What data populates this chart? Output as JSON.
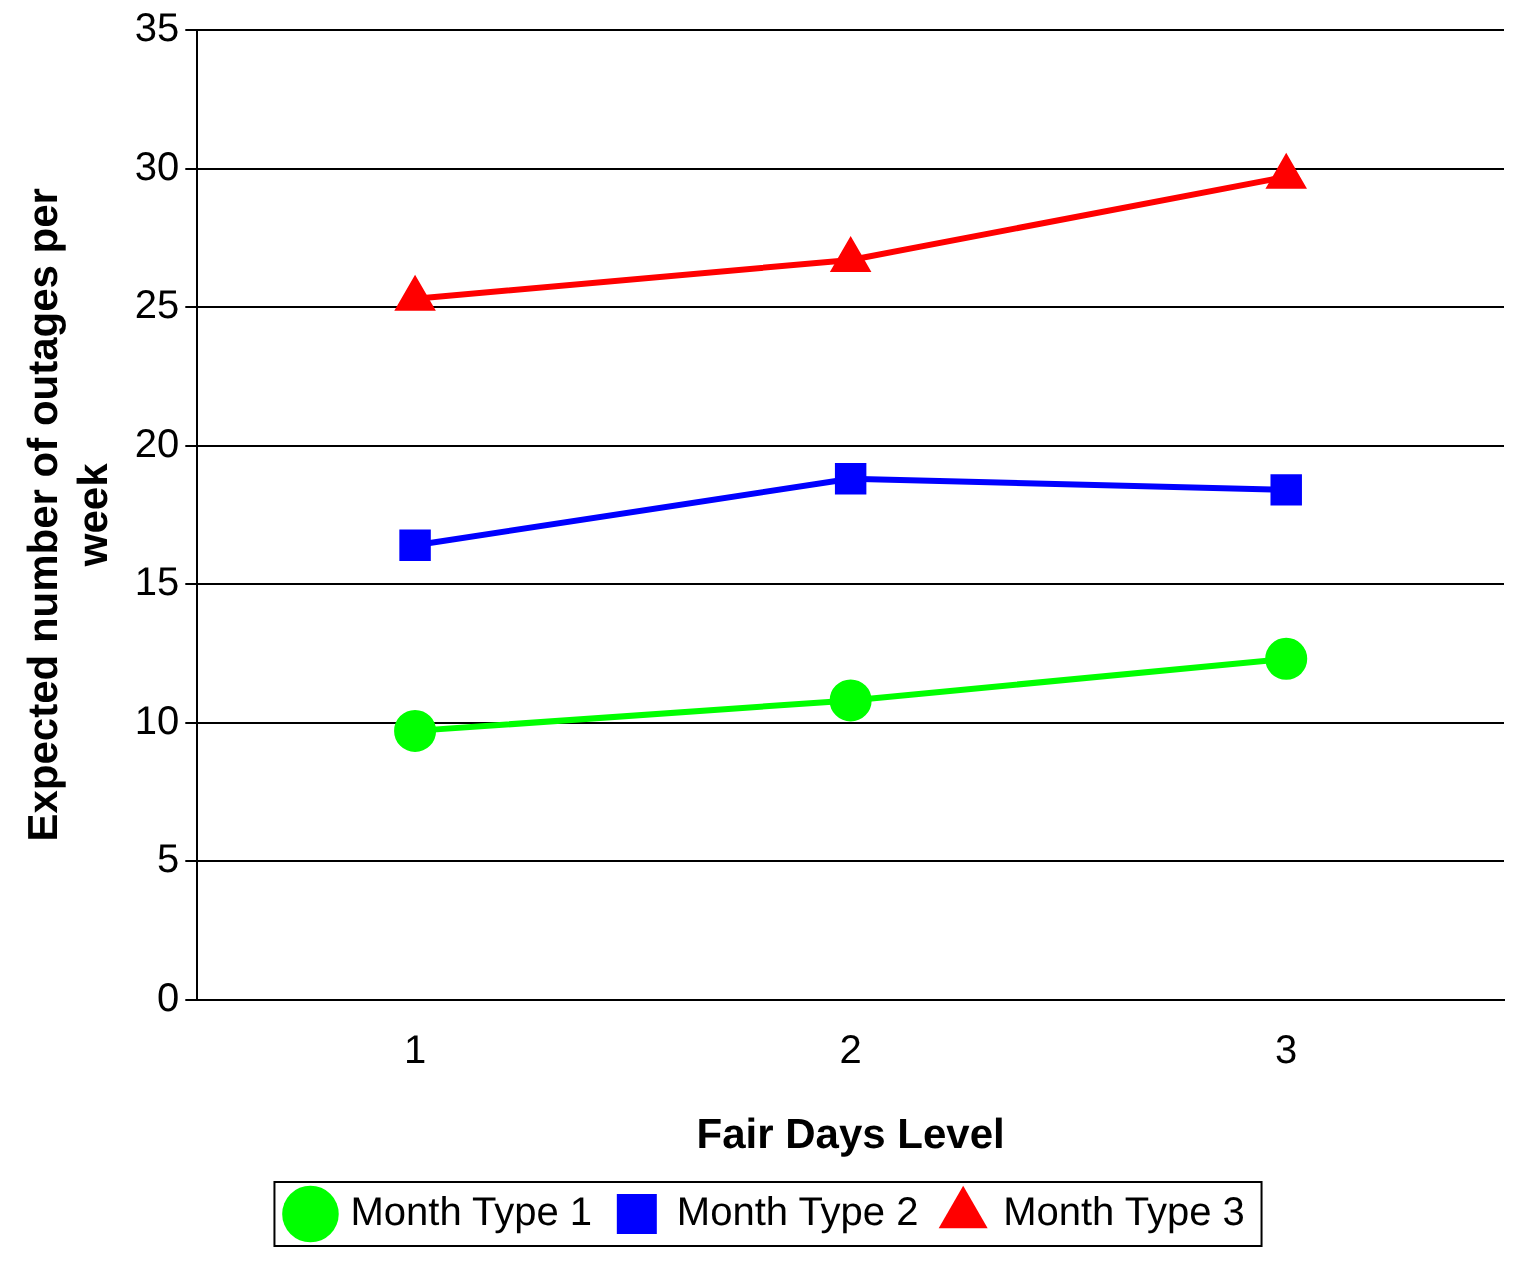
{
  "chart_data": {
    "type": "line",
    "xlabel": "Fair Days Level",
    "ylabel": "Expected number of outages per week",
    "categories": [
      "1",
      "2",
      "3"
    ],
    "series": [
      {
        "name": "Month Type 1",
        "color": "#00ff00",
        "marker": "circle",
        "values": [
          9.7,
          10.8,
          12.3
        ]
      },
      {
        "name": "Month Type 2",
        "color": "#0000ff",
        "marker": "square",
        "values": [
          16.4,
          18.8,
          18.4
        ]
      },
      {
        "name": "Month Type 3",
        "color": "#ff0000",
        "marker": "triangle",
        "values": [
          25.3,
          26.7,
          29.7
        ]
      }
    ],
    "ylim": [
      0,
      35
    ],
    "yticks": [
      0,
      5,
      10,
      15,
      20,
      25,
      30,
      35
    ],
    "grid": "y",
    "legend": "bottom"
  }
}
